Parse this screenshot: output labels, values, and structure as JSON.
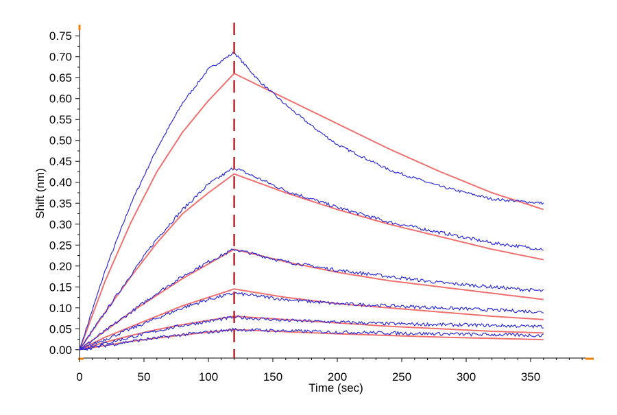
{
  "chart_data": {
    "type": "line",
    "xlabel": "Time (sec)",
    "ylabel": "Shift (nm)",
    "xlim": [
      0,
      400
    ],
    "ylim": [
      -0.02,
      0.77
    ],
    "x_ticks": [
      0,
      50,
      100,
      150,
      200,
      250,
      300,
      350
    ],
    "y_ticks": [
      0.0,
      0.05,
      0.1,
      0.15,
      0.2,
      0.25,
      0.3,
      0.35,
      0.4,
      0.45,
      0.5,
      0.55,
      0.6,
      0.65,
      0.7,
      0.75
    ],
    "x_tick_labels": [
      "0",
      "50",
      "100",
      "150",
      "200",
      "250",
      "300",
      "350"
    ],
    "y_tick_labels": [
      "0.00",
      "0.05",
      "0.10",
      "0.15",
      "0.20",
      "0.25",
      "0.30",
      "0.35",
      "0.40",
      "0.45",
      "0.50",
      "0.55",
      "0.60",
      "0.65",
      "0.70",
      "0.75"
    ],
    "grid": false,
    "vertical_marker_x": 120,
    "x_end": 360,
    "colors": {
      "measured": "#2b2bd6",
      "fit": "#f07070",
      "marker": "#c0202a",
      "axis": "#000000",
      "axis_end_marks": "#e8800a"
    },
    "series": [
      {
        "measured_x": [
          0,
          20,
          40,
          60,
          80,
          100,
          120,
          140,
          160,
          180,
          200,
          240,
          280,
          320,
          360
        ],
        "measured_y": [
          0,
          0.19,
          0.35,
          0.48,
          0.59,
          0.67,
          0.71,
          0.64,
          0.585,
          0.535,
          0.49,
          0.43,
          0.39,
          0.36,
          0.35
        ],
        "fit_x": [
          0,
          20,
          40,
          60,
          80,
          100,
          120,
          160,
          200,
          240,
          280,
          320,
          360
        ],
        "fit_y": [
          0,
          0.165,
          0.305,
          0.425,
          0.52,
          0.595,
          0.66,
          0.6,
          0.54,
          0.48,
          0.425,
          0.375,
          0.335
        ]
      },
      {
        "measured_x": [
          0,
          20,
          40,
          60,
          80,
          100,
          120,
          160,
          200,
          240,
          280,
          320,
          360
        ],
        "measured_y": [
          0,
          0.09,
          0.18,
          0.265,
          0.335,
          0.395,
          0.435,
          0.38,
          0.34,
          0.305,
          0.28,
          0.255,
          0.24
        ],
        "fit_x": [
          0,
          20,
          40,
          60,
          80,
          100,
          120,
          160,
          200,
          240,
          280,
          320,
          360
        ],
        "fit_y": [
          0,
          0.09,
          0.175,
          0.255,
          0.325,
          0.375,
          0.42,
          0.375,
          0.335,
          0.3,
          0.27,
          0.24,
          0.215
        ]
      },
      {
        "measured_x": [
          0,
          20,
          40,
          60,
          80,
          100,
          120,
          160,
          200,
          240,
          280,
          320,
          360
        ],
        "measured_y": [
          0,
          0.045,
          0.09,
          0.135,
          0.175,
          0.21,
          0.24,
          0.21,
          0.19,
          0.175,
          0.16,
          0.15,
          0.14
        ],
        "fit_x": [
          0,
          20,
          40,
          60,
          80,
          100,
          120,
          160,
          200,
          240,
          280,
          320,
          360
        ],
        "fit_y": [
          0,
          0.045,
          0.09,
          0.13,
          0.17,
          0.205,
          0.24,
          0.21,
          0.185,
          0.165,
          0.15,
          0.135,
          0.12
        ]
      },
      {
        "measured_x": [
          0,
          20,
          40,
          60,
          80,
          100,
          120,
          160,
          200,
          240,
          280,
          320,
          360
        ],
        "measured_y": [
          0,
          0.025,
          0.05,
          0.075,
          0.1,
          0.12,
          0.135,
          0.12,
          0.11,
          0.105,
          0.1,
          0.095,
          0.09
        ],
        "fit_x": [
          0,
          20,
          40,
          60,
          80,
          100,
          120,
          160,
          200,
          240,
          280,
          320,
          360
        ],
        "fit_y": [
          0,
          0.03,
          0.055,
          0.08,
          0.105,
          0.125,
          0.145,
          0.125,
          0.11,
          0.1,
          0.09,
          0.08,
          0.072
        ]
      },
      {
        "measured_x": [
          0,
          20,
          40,
          60,
          80,
          100,
          120,
          160,
          200,
          240,
          280,
          320,
          360
        ],
        "measured_y": [
          0,
          0.015,
          0.03,
          0.045,
          0.058,
          0.068,
          0.078,
          0.07,
          0.066,
          0.062,
          0.06,
          0.058,
          0.055
        ],
        "fit_x": [
          0,
          20,
          40,
          60,
          80,
          100,
          120,
          160,
          200,
          240,
          280,
          320,
          360
        ],
        "fit_y": [
          0,
          0.018,
          0.034,
          0.048,
          0.06,
          0.07,
          0.08,
          0.072,
          0.064,
          0.056,
          0.05,
          0.044,
          0.04
        ]
      },
      {
        "measured_x": [
          0,
          20,
          40,
          60,
          80,
          100,
          120,
          160,
          200,
          240,
          280,
          320,
          360
        ],
        "measured_y": [
          0,
          0.01,
          0.02,
          0.028,
          0.036,
          0.042,
          0.048,
          0.045,
          0.042,
          0.04,
          0.038,
          0.036,
          0.034
        ],
        "fit_x": [
          0,
          20,
          40,
          60,
          80,
          100,
          120,
          160,
          200,
          240,
          280,
          320,
          360
        ],
        "fit_y": [
          0,
          0.01,
          0.02,
          0.028,
          0.035,
          0.042,
          0.048,
          0.043,
          0.038,
          0.034,
          0.03,
          0.027,
          0.024
        ]
      }
    ]
  }
}
